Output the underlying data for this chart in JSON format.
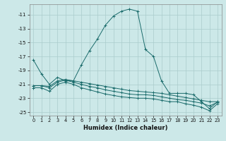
{
  "xlabel": "Humidex (Indice chaleur)",
  "background_color": "#cce8e8",
  "grid_color": "#aacccc",
  "line_color": "#1a6b6b",
  "xlim": [
    -0.5,
    23.5
  ],
  "ylim": [
    -25.5,
    -9.5
  ],
  "yticks": [
    -25,
    -23,
    -21,
    -19,
    -17,
    -15,
    -13,
    -11
  ],
  "xticks": [
    0,
    1,
    2,
    3,
    4,
    5,
    6,
    7,
    8,
    9,
    10,
    11,
    12,
    13,
    14,
    15,
    16,
    17,
    18,
    19,
    20,
    21,
    22,
    23
  ],
  "series": [
    {
      "x": [
        0,
        1,
        2,
        3,
        4,
        5,
        6,
        7,
        8,
        9,
        10,
        11,
        12,
        13,
        14,
        15,
        16,
        17,
        18,
        19,
        20,
        21,
        22,
        23
      ],
      "y": [
        -17.5,
        -19.5,
        -21.0,
        -20.0,
        -20.5,
        -20.5,
        -18.2,
        -16.2,
        -14.5,
        -12.5,
        -11.2,
        -10.5,
        -10.2,
        -10.5,
        -16.0,
        -17.0,
        -20.5,
        -22.3,
        -22.3,
        -22.3,
        -22.5,
        -23.5,
        -24.5,
        -23.5
      ]
    },
    {
      "x": [
        0,
        1,
        2,
        3,
        4,
        5,
        6,
        7,
        8,
        9,
        10,
        11,
        12,
        13,
        14,
        15,
        16,
        17,
        18,
        19,
        20,
        21,
        22,
        23
      ],
      "y": [
        -21.2,
        -21.2,
        -21.3,
        -20.5,
        -20.3,
        -20.5,
        -20.7,
        -20.9,
        -21.1,
        -21.3,
        -21.5,
        -21.7,
        -21.9,
        -22.0,
        -22.1,
        -22.2,
        -22.3,
        -22.5,
        -22.7,
        -22.9,
        -23.1,
        -23.3,
        -23.5,
        -23.5
      ]
    },
    {
      "x": [
        0,
        1,
        2,
        3,
        4,
        5,
        6,
        7,
        8,
        9,
        10,
        11,
        12,
        13,
        14,
        15,
        16,
        17,
        18,
        19,
        20,
        21,
        22,
        23
      ],
      "y": [
        -21.2,
        -21.2,
        -21.5,
        -20.7,
        -20.4,
        -20.7,
        -21.0,
        -21.3,
        -21.5,
        -21.8,
        -22.0,
        -22.2,
        -22.4,
        -22.5,
        -22.5,
        -22.6,
        -22.8,
        -23.0,
        -23.2,
        -23.3,
        -23.5,
        -23.7,
        -24.1,
        -23.6
      ]
    },
    {
      "x": [
        0,
        1,
        2,
        3,
        4,
        5,
        6,
        7,
        8,
        9,
        10,
        11,
        12,
        13,
        14,
        15,
        16,
        17,
        18,
        19,
        20,
        21,
        22,
        23
      ],
      "y": [
        -21.5,
        -21.5,
        -22.0,
        -21.0,
        -20.7,
        -21.0,
        -21.5,
        -21.8,
        -22.1,
        -22.4,
        -22.6,
        -22.8,
        -22.9,
        -23.0,
        -23.0,
        -23.1,
        -23.3,
        -23.5,
        -23.5,
        -23.8,
        -24.0,
        -24.3,
        -24.8,
        -23.8
      ]
    }
  ]
}
